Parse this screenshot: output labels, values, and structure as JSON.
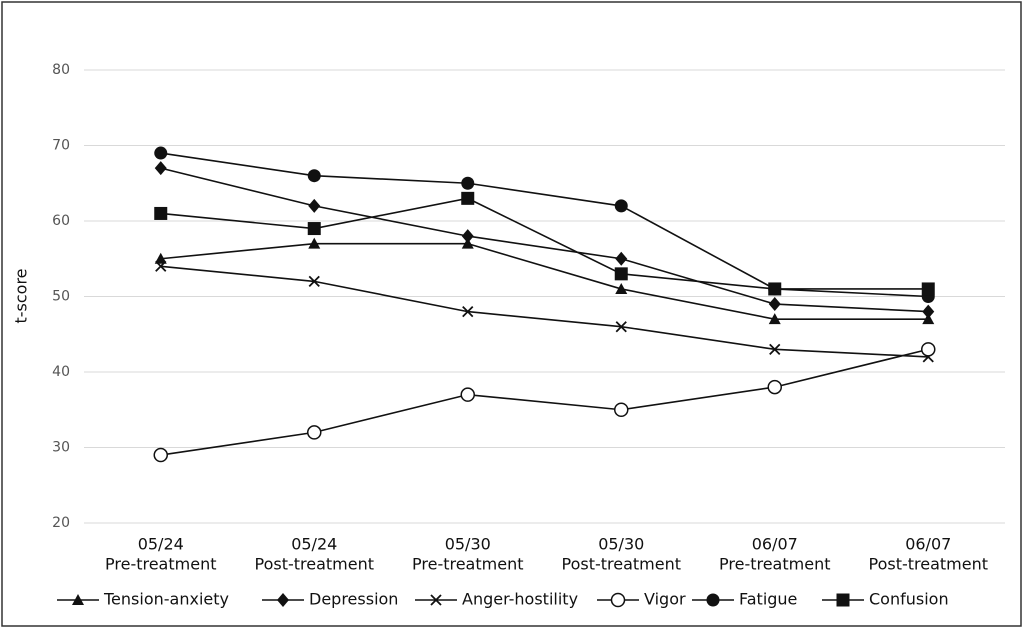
{
  "chart_data": {
    "type": "line",
    "y_label": "t-score",
    "categories": [
      "05/24",
      "05/24",
      "05/30",
      "05/30",
      "06/07",
      "06/07"
    ],
    "category_phases": [
      "Pre-treatment",
      "Post-treatment",
      "Pre-treatment",
      "Post-treatment",
      "Pre-treatment",
      "Post-treatment"
    ],
    "ylim": [
      20,
      80
    ],
    "yticks": [
      20,
      30,
      40,
      50,
      60,
      70,
      80
    ],
    "grid": true,
    "series": [
      {
        "name": "Tension-anxiety",
        "color": "#111111",
        "marker": "triangle",
        "values": [
          55,
          57,
          57,
          51,
          47,
          47
        ]
      },
      {
        "name": "Depression",
        "color": "#111111",
        "marker": "diamond",
        "values": [
          67,
          62,
          58,
          55,
          49,
          48
        ]
      },
      {
        "name": "Anger-hostility",
        "color": "#111111",
        "marker": "x",
        "values": [
          54,
          52,
          48,
          46,
          43,
          42
        ]
      },
      {
        "name": "Vigor",
        "color": "#111111",
        "marker": "open-circle",
        "values": [
          29,
          32,
          37,
          35,
          38,
          43
        ]
      },
      {
        "name": "Fatigue",
        "color": "#111111",
        "marker": "circle",
        "values": [
          69,
          66,
          65,
          62,
          51,
          50
        ]
      },
      {
        "name": "Confusion",
        "color": "#111111",
        "marker": "square",
        "values": [
          61,
          59,
          63,
          53,
          51,
          51
        ]
      }
    ]
  }
}
